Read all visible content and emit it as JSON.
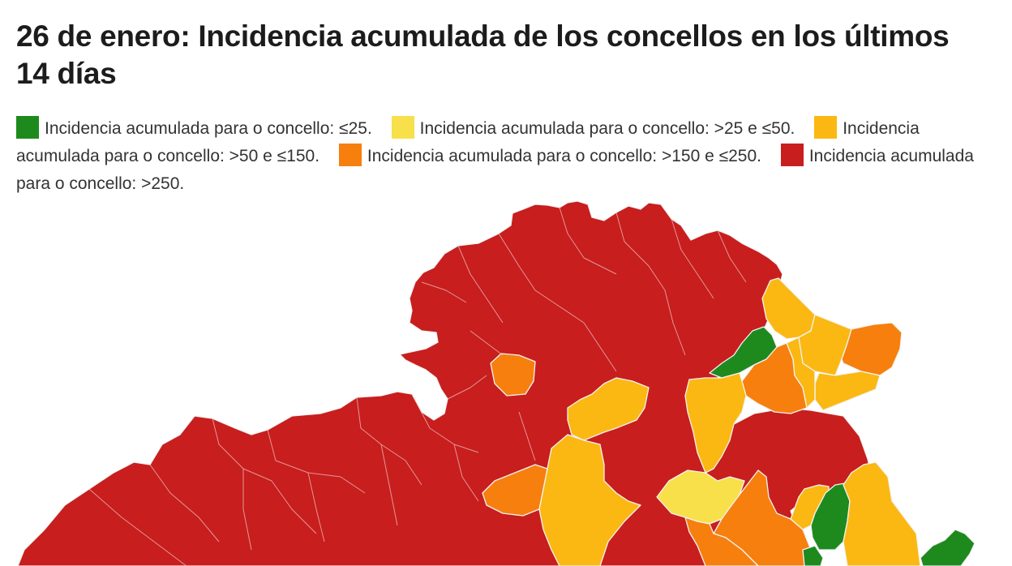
{
  "title": "26 de enero: Incidencia acumulada de los concellos en los últimos 14 días",
  "legend": [
    {
      "label": "Incidencia acumulada para o concello: ≤25.",
      "color": "#1e8a1e"
    },
    {
      "label": "Incidencia acumulada para o concello: >25 e ≤50.",
      "color": "#f7e04a"
    },
    {
      "label": "Incidencia acumulada para o concello: >50 e ≤150.",
      "color": "#fbb813"
    },
    {
      "label": "Incidencia acumulada para o concello: >150 e ≤250.",
      "color": "#f77f0e"
    },
    {
      "label": "Incidencia acumulada para o concello: >250.",
      "color": "#c81e1e"
    }
  ]
}
